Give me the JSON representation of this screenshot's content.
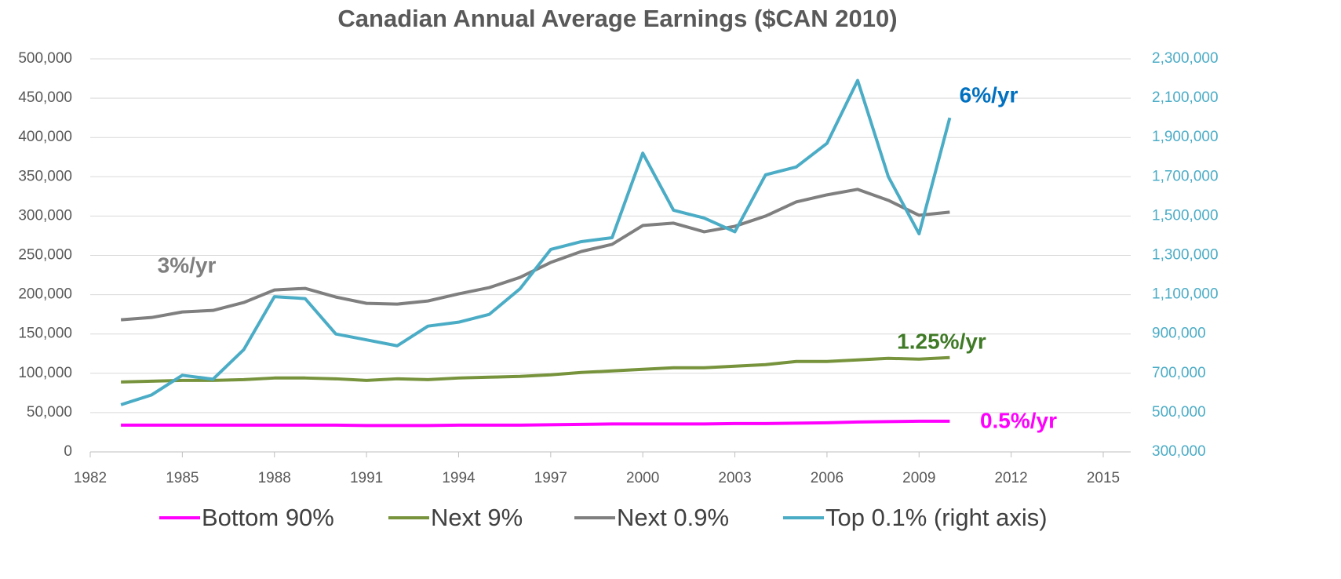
{
  "chart_data": {
    "type": "line",
    "title": "Canadian Annual  Average Earnings ($CAN 2010)",
    "x": [
      1983,
      1984,
      1985,
      1986,
      1987,
      1988,
      1989,
      1990,
      1991,
      1992,
      1993,
      1994,
      1995,
      1996,
      1997,
      1998,
      1999,
      2000,
      2001,
      2002,
      2003,
      2004,
      2005,
      2006,
      2007,
      2008,
      2009,
      2010
    ],
    "xlim": [
      1982,
      2015
    ],
    "xticks": [
      1982,
      1985,
      1988,
      1991,
      1994,
      1997,
      2000,
      2003,
      2006,
      2009,
      2012,
      2015
    ],
    "ylim": [
      0,
      500000
    ],
    "yticks": [
      0,
      {
        "value": 50000,
        "label": "50,000"
      },
      {
        "value": 100000,
        "label": "100,000"
      },
      {
        "value": 150000,
        "label": "150,000"
      },
      {
        "value": 200000,
        "label": "200,000"
      },
      {
        "value": 250000,
        "label": "250,000"
      },
      {
        "value": 300000,
        "label": "300,000"
      },
      {
        "value": 350000,
        "label": "350,000"
      },
      {
        "value": 400000,
        "label": "400,000"
      },
      {
        "value": 450000,
        "label": "450,000"
      },
      {
        "value": 500000,
        "label": "500,000"
      }
    ],
    "y2lim": [
      300000,
      2300000
    ],
    "y2ticks": [
      {
        "value": 300000,
        "label": "300,000"
      },
      {
        "value": 500000,
        "label": "500,000"
      },
      {
        "value": 700000,
        "label": "700,000"
      },
      {
        "value": 900000,
        "label": "900,000"
      },
      {
        "value": 1100000,
        "label": "1,100,000"
      },
      {
        "value": 1300000,
        "label": "1,300,000"
      },
      {
        "value": 1500000,
        "label": "1,500,000"
      },
      {
        "value": 1700000,
        "label": "1,700,000"
      },
      {
        "value": 1900000,
        "label": "1,900,000"
      },
      {
        "value": 2100000,
        "label": "2,100,000"
      },
      {
        "value": 2300000,
        "label": "2,300,000"
      }
    ],
    "grid": true,
    "legend": "bottom",
    "series": [
      {
        "name": "Bottom 90%",
        "color": "#ff00ff",
        "values": [
          34000,
          34000,
          34000,
          34000,
          34000,
          34000,
          34000,
          34000,
          33500,
          33500,
          33500,
          34000,
          34000,
          34000,
          34500,
          35000,
          35500,
          35500,
          35500,
          35500,
          36000,
          36000,
          36500,
          37000,
          38000,
          38500,
          39000,
          39000
        ]
      },
      {
        "name": "Next 9%",
        "color": "#77933c",
        "values": [
          89000,
          90000,
          91000,
          91000,
          92000,
          94000,
          94000,
          93000,
          91000,
          93000,
          92000,
          94000,
          95000,
          96000,
          98000,
          101000,
          103000,
          105000,
          107000,
          107000,
          109000,
          111000,
          115000,
          115000,
          117000,
          119000,
          118000,
          120000
        ]
      },
      {
        "name": "Next 0.9%",
        "color": "#7f7f7f",
        "values": [
          168000,
          171000,
          178000,
          180000,
          190000,
          206000,
          208000,
          197000,
          189000,
          188000,
          192000,
          201000,
          209000,
          222000,
          241000,
          255000,
          264000,
          288000,
          291000,
          280000,
          287000,
          300000,
          318000,
          327000,
          334000,
          320000,
          301000,
          305000
        ]
      },
      {
        "name": "Top 0.1% (right axis)",
        "color": "#4bacc6",
        "axis": "y2",
        "values": [
          540000,
          590000,
          690000,
          670000,
          820000,
          1090000,
          1080000,
          900000,
          870000,
          840000,
          940000,
          960000,
          1000000,
          1130000,
          1330000,
          1370000,
          1390000,
          1820000,
          1530000,
          1490000,
          1420000,
          1710000,
          1750000,
          1870000,
          2190000,
          1700000,
          1410000,
          2000000
        ]
      }
    ],
    "annotations": [
      {
        "text": "3%/yr",
        "color": "#7f7f7f"
      },
      {
        "text": "6%/yr",
        "color": "#0070c0"
      },
      {
        "text": "1.25%/yr",
        "color": "#3f7a26"
      },
      {
        "text": "0.5%/yr",
        "color": "#ff00ff"
      }
    ]
  }
}
